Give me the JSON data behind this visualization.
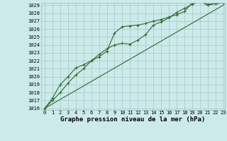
{
  "title": "Graphe pression niveau de la mer (hPa)",
  "x_values": [
    0,
    1,
    2,
    3,
    4,
    5,
    6,
    7,
    8,
    9,
    10,
    11,
    12,
    13,
    14,
    15,
    16,
    17,
    18,
    19,
    20,
    21,
    22,
    23
  ],
  "line1": [
    1016.0,
    1017.0,
    1018.0,
    1019.2,
    1020.2,
    1021.0,
    1022.0,
    1022.5,
    1023.2,
    1025.5,
    1026.3,
    1026.4,
    1026.5,
    1026.7,
    1027.0,
    1027.2,
    1027.5,
    1027.8,
    1028.2,
    1029.3,
    1029.5,
    1029.1,
    1029.2,
    1029.3
  ],
  "line2": [
    1016.0,
    1017.3,
    1019.0,
    1020.0,
    1021.1,
    1021.5,
    1022.0,
    1022.8,
    1023.5,
    1024.0,
    1024.2,
    1024.1,
    1024.6,
    1025.3,
    1026.5,
    1026.9,
    1027.4,
    1028.1,
    1028.6,
    1029.1,
    1029.5,
    1029.0,
    1029.2,
    1029.3
  ],
  "line3": [
    1016.0,
    1016.57,
    1017.13,
    1017.7,
    1018.26,
    1018.83,
    1019.39,
    1019.96,
    1020.52,
    1021.09,
    1021.65,
    1022.22,
    1022.78,
    1023.35,
    1023.91,
    1024.48,
    1025.04,
    1025.61,
    1026.17,
    1026.74,
    1027.3,
    1027.87,
    1028.43,
    1029.0
  ],
  "ylim_min": 1016,
  "ylim_max": 1029,
  "yticks": [
    1016,
    1017,
    1018,
    1019,
    1020,
    1021,
    1022,
    1023,
    1024,
    1025,
    1026,
    1027,
    1028,
    1029
  ],
  "xlim_min": 0,
  "xlim_max": 23,
  "xticks": [
    0,
    1,
    2,
    3,
    4,
    5,
    6,
    7,
    8,
    9,
    10,
    11,
    12,
    13,
    14,
    15,
    16,
    17,
    18,
    19,
    20,
    21,
    22,
    23
  ],
  "line_color": "#2d6a2d",
  "marker": "+",
  "bg_color": "#cceaea",
  "grid_color": "#9bbfbf",
  "title_fontsize": 6.5,
  "tick_fontsize": 5.0,
  "linewidth": 0.8,
  "markersize": 2.5,
  "markeredgewidth": 0.8
}
